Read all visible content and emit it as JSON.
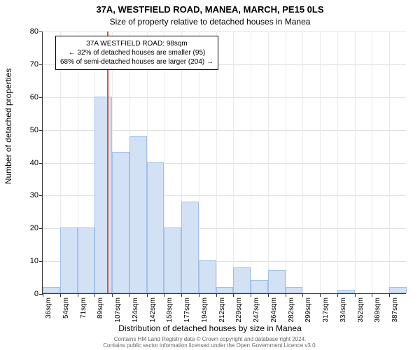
{
  "title_main": "37A, WESTFIELD ROAD, MANEA, MARCH, PE15 0LS",
  "title_sub": "Size of property relative to detached houses in Manea",
  "y_axis_label": "Number of detached properties",
  "x_axis_label": "Distribution of detached houses by size in Manea",
  "footer_line1": "Contains HM Land Registry data © Crown copyright and database right 2024.",
  "footer_line2": "Contains public sector information licensed under the Open Government Licence v3.0.",
  "annotation": {
    "line1": "37A WESTFIELD ROAD: 98sqm",
    "line2": "← 32% of detached houses are smaller (95)",
    "line3": "68% of semi-detached houses are larger (204) →"
  },
  "colors": {
    "bar_fill": "#d3e1f5",
    "bar_border": "#9fc0ea",
    "grid": "#e0e0e0",
    "axis": "#333333",
    "reference_line": "#e74c3c",
    "footer_text": "#666666",
    "background": "#ffffff"
  },
  "chart": {
    "type": "histogram",
    "ylim": [
      0,
      80
    ],
    "ytick_step": 10,
    "yticks": [
      0,
      10,
      20,
      30,
      40,
      50,
      60,
      70,
      80
    ],
    "x_labels": [
      "36sqm",
      "54sqm",
      "71sqm",
      "89sqm",
      "107sqm",
      "124sqm",
      "142sqm",
      "159sqm",
      "177sqm",
      "194sqm",
      "212sqm",
      "229sqm",
      "247sqm",
      "264sqm",
      "282sqm",
      "299sqm",
      "317sqm",
      "334sqm",
      "352sqm",
      "369sqm",
      "387sqm"
    ],
    "values": [
      2,
      20,
      20,
      60,
      43,
      48,
      40,
      20,
      28,
      10,
      2,
      8,
      4,
      7,
      2,
      0,
      0,
      1,
      0,
      0,
      2
    ],
    "reference_x_value": 98,
    "x_min": 36,
    "x_max": 387,
    "bar_width": 1.0
  },
  "fonts": {
    "title_main": 13,
    "title_sub": 12,
    "axis_label": 12,
    "tick": 11,
    "xtick": 10,
    "annotation": 10,
    "footer": 8
  }
}
